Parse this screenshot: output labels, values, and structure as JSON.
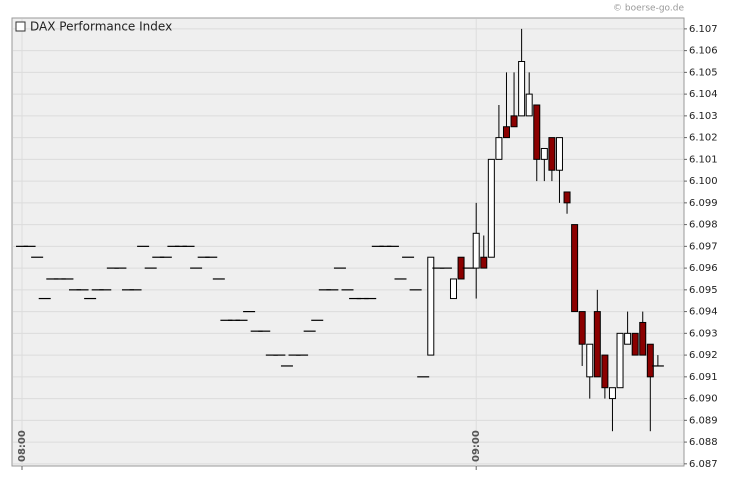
{
  "chart_data": {
    "type": "candlestick",
    "title": "DAX Performance Index",
    "source": "© boerse-go.de",
    "categories": [
      "08:00",
      null,
      null,
      null,
      null,
      null,
      null,
      null,
      null,
      null,
      null,
      null,
      null,
      null,
      null,
      null,
      null,
      null,
      null,
      null,
      null,
      null,
      null,
      null,
      null,
      null,
      null,
      null,
      null,
      null,
      null,
      null,
      null,
      null,
      null,
      null,
      null,
      null,
      null,
      null,
      null,
      null,
      null,
      null,
      null,
      null,
      null,
      null,
      null,
      null,
      null,
      null,
      null,
      null,
      null,
      null,
      null,
      null,
      null,
      null,
      "09:00",
      null,
      null,
      null,
      null,
      null,
      null,
      null,
      null,
      null,
      null,
      null,
      null,
      null,
      null,
      null,
      null,
      null,
      null,
      null,
      null,
      null,
      null,
      null,
      null
    ],
    "open": [
      6097,
      6097,
      6096.5,
      6094.6,
      6095.5,
      6095.5,
      6095.5,
      6095,
      6095,
      6094.6,
      6095,
      6095,
      6096,
      6096,
      6095,
      6095,
      6097,
      6096,
      6096.5,
      6096.5,
      6097,
      6097,
      6097,
      6096,
      6096.5,
      6096.5,
      6095.5,
      6093.6,
      6093.6,
      6093.6,
      6094,
      6093.1,
      6093.1,
      6092,
      6092,
      6091.5,
      6092,
      6092,
      6093.1,
      6093.6,
      6095,
      6095,
      6096,
      6095,
      6094.6,
      6094.6,
      6094.6,
      6097,
      6097,
      6097,
      6095.5,
      6096.5,
      6095,
      6091,
      6092,
      6096,
      6096,
      6094.6,
      6096.5,
      6096,
      6096,
      6096.5,
      6096.5,
      6101,
      6102.5,
      6103,
      6103,
      6103,
      6103.5,
      6101,
      6102,
      6100.5,
      6099.5,
      6098,
      6094,
      6091,
      6094,
      6092,
      6090,
      6090.5,
      6092.5,
      6093,
      6093.5,
      6092.5,
      6091.5
    ],
    "high": [
      6097,
      6097,
      6096.5,
      6094.6,
      6095.5,
      6095.5,
      6095.5,
      6095,
      6095,
      6094.6,
      6095,
      6095,
      6096,
      6096,
      6095,
      6095,
      6097,
      6096,
      6096.5,
      6096.5,
      6097,
      6097,
      6097,
      6096,
      6096.5,
      6096.5,
      6095.5,
      6093.6,
      6093.6,
      6093.6,
      6094,
      6093.1,
      6093.1,
      6092,
      6092,
      6091.5,
      6092,
      6092,
      6093.1,
      6093.6,
      6095,
      6095,
      6096,
      6095,
      6094.6,
      6094.6,
      6094.6,
      6097,
      6097,
      6097,
      6095.5,
      6096.5,
      6095,
      6091,
      6096.5,
      6096,
      6096,
      6095.5,
      6096.5,
      6096,
      6099,
      6097.5,
      6101,
      6103.5,
      6105,
      6105,
      6107,
      6105,
      6103.5,
      6101.5,
      6102,
      6102,
      6099.5,
      6098,
      6094,
      6092.5,
      6095,
      6092,
      6090.5,
      6093,
      6094,
      6093,
      6094,
      6092.5,
      6092
    ],
    "low": [
      6097,
      6097,
      6096.5,
      6094.6,
      6095.5,
      6095.5,
      6095.5,
      6095,
      6095,
      6094.6,
      6095,
      6095,
      6096,
      6096,
      6095,
      6095,
      6097,
      6096,
      6096.5,
      6096.5,
      6097,
      6097,
      6097,
      6096,
      6096.5,
      6096.5,
      6095.5,
      6093.6,
      6093.6,
      6093.6,
      6094,
      6093.1,
      6093.1,
      6092,
      6092,
      6091.5,
      6092,
      6092,
      6093.1,
      6093.6,
      6095,
      6095,
      6096,
      6095,
      6094.6,
      6094.6,
      6094.6,
      6097,
      6097,
      6097,
      6095.5,
      6096.5,
      6095,
      6091,
      6092,
      6096,
      6096,
      6094.6,
      6095.5,
      6096,
      6094.6,
      6096,
      6096.5,
      6101,
      6102,
      6102.5,
      6103,
      6103,
      6100,
      6100,
      6100,
      6099,
      6098.5,
      6094,
      6091.5,
      6090,
      6091,
      6090,
      6088.5,
      6090.5,
      6092.5,
      6092,
      6092,
      6088.5,
      6091.5
    ],
    "close": [
      6097,
      6097,
      6096.5,
      6094.6,
      6095.5,
      6095.5,
      6095.5,
      6095,
      6095,
      6094.6,
      6095,
      6095,
      6096,
      6096,
      6095,
      6095,
      6097,
      6096,
      6096.5,
      6096.5,
      6097,
      6097,
      6097,
      6096,
      6096.5,
      6096.5,
      6095.5,
      6093.6,
      6093.6,
      6093.6,
      6094,
      6093.1,
      6093.1,
      6092,
      6092,
      6091.5,
      6092,
      6092,
      6093.1,
      6093.6,
      6095,
      6095,
      6096,
      6095,
      6094.6,
      6094.6,
      6094.6,
      6097,
      6097,
      6097,
      6095.5,
      6096.5,
      6095,
      6091,
      6096.5,
      6096,
      6096,
      6095.5,
      6095.5,
      6096,
      6097.6,
      6096,
      6101,
      6102,
      6102,
      6102.5,
      6105.5,
      6104,
      6101,
      6101.5,
      6100.5,
      6102,
      6099,
      6094,
      6092.5,
      6092.5,
      6091,
      6090.5,
      6090.5,
      6093,
      6093,
      6092,
      6092,
      6091,
      6091.5
    ],
    "up_color": "#ffffff",
    "down_color": "#8b0000",
    "line_color": "#000000",
    "ylim": [
      6086.9,
      6107.5
    ],
    "yticks": [
      {
        "value": 6087,
        "label": "6.087"
      },
      {
        "value": 6088,
        "label": "6.088"
      },
      {
        "value": 6089,
        "label": "6.089"
      },
      {
        "value": 6090,
        "label": "6.090"
      },
      {
        "value": 6091,
        "label": "6.091"
      },
      {
        "value": 6092,
        "label": "6.092"
      },
      {
        "value": 6093,
        "label": "6.093"
      },
      {
        "value": 6094,
        "label": "6.094"
      },
      {
        "value": 6095,
        "label": "6.095"
      },
      {
        "value": 6096,
        "label": "6.096"
      },
      {
        "value": 6097,
        "label": "6.097"
      },
      {
        "value": 6098,
        "label": "6.098"
      },
      {
        "value": 6099,
        "label": "6.099"
      },
      {
        "value": 6100,
        "label": "6.100"
      },
      {
        "value": 6101,
        "label": "6.101"
      },
      {
        "value": 6102,
        "label": "6.102"
      },
      {
        "value": 6103,
        "label": "6.103"
      },
      {
        "value": 6104,
        "label": "6.104"
      },
      {
        "value": 6105,
        "label": "6.105"
      },
      {
        "value": 6106,
        "label": "6.106"
      },
      {
        "value": 6107,
        "label": "6.107"
      }
    ],
    "grid": true
  }
}
